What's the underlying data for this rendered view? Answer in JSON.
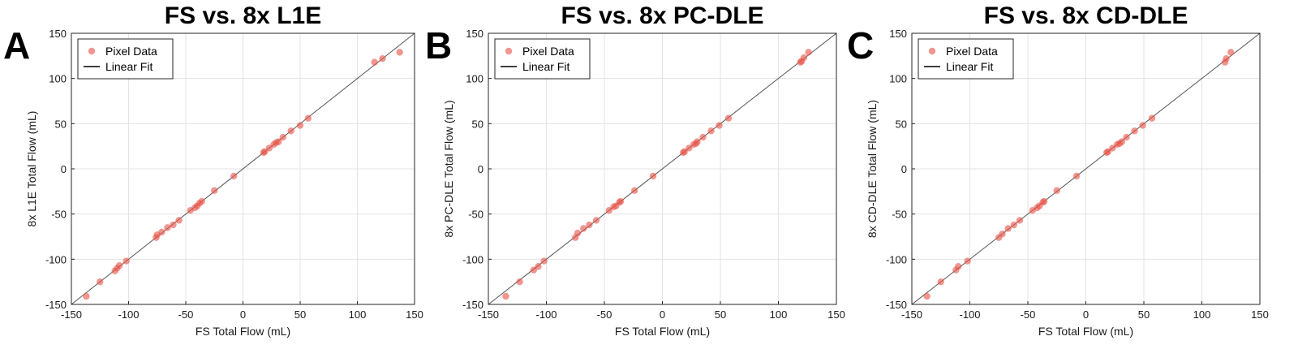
{
  "colors": {
    "point": "#e8564a",
    "fit_line": "#555555",
    "grid": "#e3e3e3",
    "axis": "#262626"
  },
  "chart_data": [
    {
      "type": "scatter",
      "letter": "A",
      "title": "FS vs. 8x L1E",
      "xlabel": "FS Total Flow (mL)",
      "ylabel": "8x L1E Total Flow (mL)",
      "xlim": [
        -150,
        150
      ],
      "ylim": [
        -150,
        150
      ],
      "xticks": [
        -150,
        -100,
        -50,
        0,
        50,
        100,
        150
      ],
      "yticks": [
        -150,
        -100,
        -50,
        0,
        50,
        100,
        150
      ],
      "grid": true,
      "legend_position": "top-left",
      "legend": [
        "Pixel Data",
        "Linear Fit"
      ],
      "fit_line": {
        "slope": 1.0,
        "intercept": 0
      },
      "series": [
        {
          "name": "Pixel Data",
          "x": [
            -137,
            -125,
            -112,
            -110,
            -108,
            -102,
            -76,
            -75,
            -71,
            -66,
            -61,
            -56,
            -46,
            -42,
            -40,
            -38,
            -36,
            -25,
            -8,
            18,
            19,
            23,
            27,
            29,
            31,
            35,
            42,
            50,
            57,
            115,
            122,
            137
          ],
          "y": [
            -141,
            -125,
            -113,
            -110,
            -107,
            -102,
            -76,
            -73,
            -70,
            -65,
            -62,
            -57,
            -46,
            -43,
            -41,
            -38,
            -36,
            -24,
            -8,
            18,
            19,
            23,
            27,
            29,
            30,
            35,
            42,
            48,
            56,
            118,
            122,
            129
          ]
        }
      ]
    },
    {
      "type": "scatter",
      "letter": "B",
      "title": "FS vs. 8x PC-DLE",
      "xlabel": "FS Total Flow (mL)",
      "ylabel": "8x PC-DLE Total Flow (mL)",
      "xlim": [
        -150,
        150
      ],
      "ylim": [
        -150,
        150
      ],
      "xticks": [
        -150,
        -100,
        -50,
        0,
        50,
        100,
        150
      ],
      "yticks": [
        -150,
        -100,
        -50,
        0,
        50,
        100,
        150
      ],
      "grid": true,
      "legend_position": "top-left",
      "legend": [
        "Pixel Data",
        "Linear Fit"
      ],
      "fit_line": {
        "slope": 1.0,
        "intercept": 0
      },
      "series": [
        {
          "name": "Pixel Data",
          "x": [
            -135,
            -123,
            -111,
            -107,
            -102,
            -75,
            -73,
            -68,
            -63,
            -57,
            -46,
            -42,
            -40,
            -37,
            -36,
            -24,
            -8,
            18,
            19,
            23,
            27,
            29,
            30,
            35,
            42,
            49,
            57,
            119,
            120,
            122,
            126
          ],
          "y": [
            -141,
            -125,
            -112,
            -108,
            -102,
            -76,
            -71,
            -66,
            -62,
            -57,
            -46,
            -42,
            -41,
            -37,
            -36,
            -24,
            -8,
            18,
            19,
            23,
            27,
            28,
            30,
            35,
            42,
            48,
            56,
            118,
            119,
            123,
            129
          ]
        }
      ]
    },
    {
      "type": "scatter",
      "letter": "C",
      "title": "FS vs. 8x CD-DLE",
      "xlabel": "FS Total Flow (mL)",
      "ylabel": "8x CD-DLE Total Flow (mL)",
      "xlim": [
        -150,
        150
      ],
      "ylim": [
        -150,
        150
      ],
      "xticks": [
        -150,
        -100,
        -50,
        0,
        50,
        100,
        150
      ],
      "yticks": [
        -150,
        -100,
        -50,
        0,
        50,
        100,
        150
      ],
      "grid": true,
      "legend_position": "top-left",
      "legend": [
        "Pixel Data",
        "Linear Fit"
      ],
      "fit_line": {
        "slope": 1.0,
        "intercept": 0
      },
      "series": [
        {
          "name": "Pixel Data",
          "x": [
            -137,
            -125,
            -112,
            -110,
            -102,
            -75,
            -72,
            -67,
            -62,
            -57,
            -46,
            -42,
            -40,
            -37,
            -36,
            -25,
            -8,
            18,
            19,
            23,
            27,
            29,
            31,
            35,
            42,
            49,
            57,
            120,
            121,
            125
          ],
          "y": [
            -141,
            -125,
            -112,
            -108,
            -102,
            -76,
            -72,
            -66,
            -62,
            -57,
            -46,
            -43,
            -41,
            -37,
            -36,
            -24,
            -8,
            18,
            19,
            23,
            27,
            28,
            30,
            35,
            42,
            48,
            56,
            118,
            122,
            129
          ]
        }
      ]
    }
  ]
}
